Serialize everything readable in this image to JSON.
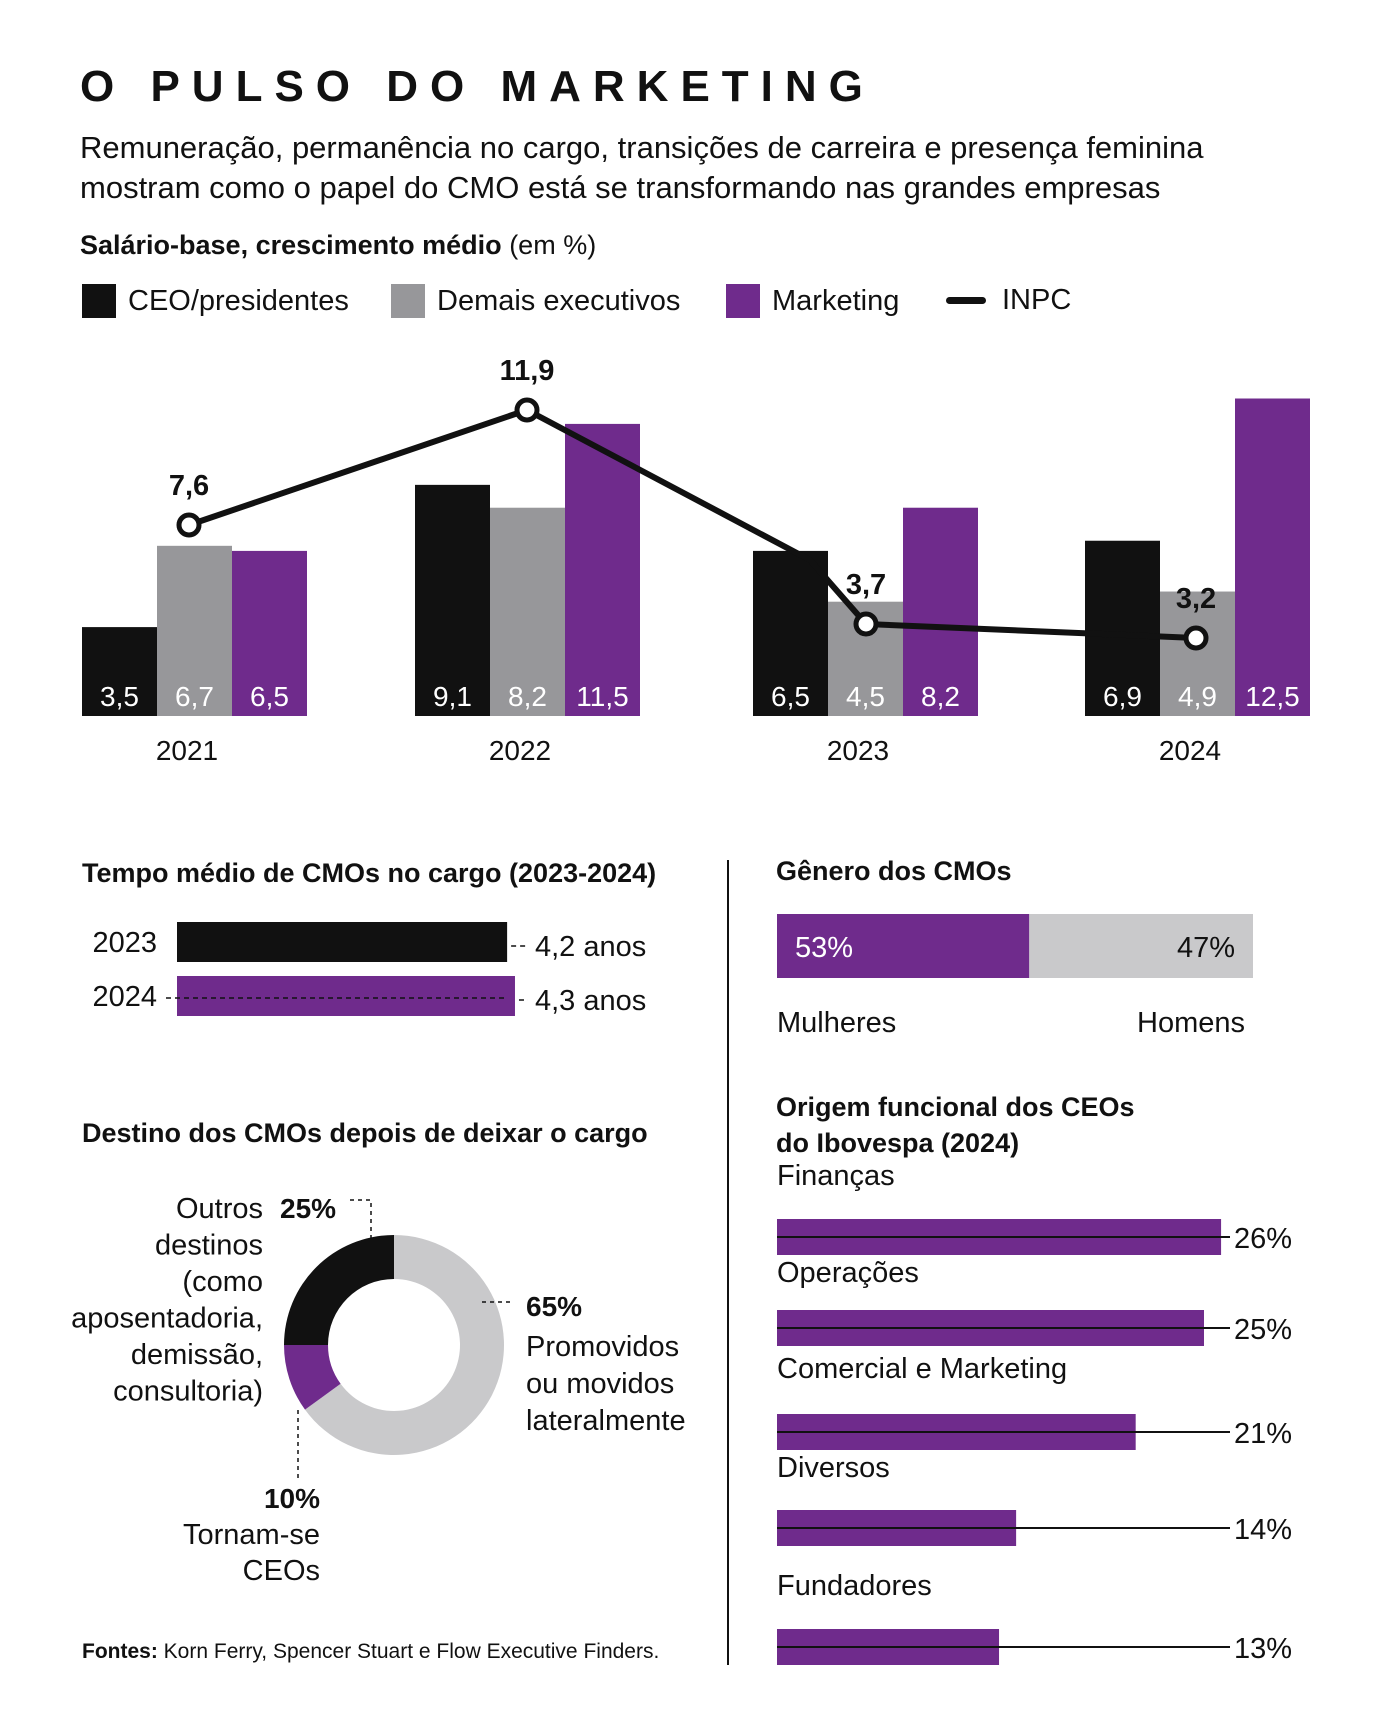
{
  "header": {
    "title": "O PULSO DO MARKETING",
    "subtitle": "Remuneração, permanência no cargo, transições de carreira e presença feminina mostram como o papel do CMO está se transformando nas grandes empresas"
  },
  "colors": {
    "ceo": "#111111",
    "demais": "#97979a",
    "marketing": "#6f2b8c",
    "light_gray": "#c9c9cb",
    "inpc": "#111111"
  },
  "salary_section": {
    "title_bold": "Salário-base, crescimento médio",
    "title_light": "(em %)"
  },
  "tenure_section": {
    "title": "Tempo médio de CMOs no cargo (2023-2024)"
  },
  "destino_section": {
    "title": "Destino dos CMOs depois de deixar o cargo"
  },
  "genero_section": {
    "title": "Gênero dos CMOs"
  },
  "origem_section": {
    "title_line1": "Origem funcional dos CEOs",
    "title_line2": "do Ibovespa (2024)"
  },
  "footer": {
    "label": "Fontes:",
    "text": "Korn Ferry, Spencer Stuart e Flow Executive Finders."
  },
  "chart_data": [
    {
      "type": "bar",
      "categories": [
        "2021",
        "2022",
        "2023",
        "2024"
      ],
      "series": [
        {
          "name": "CEO/presidentes",
          "values": [
            3.5,
            9.1,
            6.5,
            6.9
          ],
          "labels": [
            "3,5",
            "9,1",
            "6,5",
            "6,9"
          ],
          "color": "#111111"
        },
        {
          "name": "Demais executivos",
          "values": [
            6.7,
            8.2,
            4.5,
            4.9
          ],
          "labels": [
            "6,7",
            "8,2",
            "4,5",
            "4,9"
          ],
          "color": "#97979a"
        },
        {
          "name": "Marketing",
          "values": [
            6.5,
            11.5,
            8.2,
            12.5
          ],
          "labels": [
            "6,5",
            "11,5",
            "8,2",
            "12,5"
          ],
          "color": "#6f2b8c"
        }
      ],
      "line": {
        "name": "INPC",
        "values": [
          7.6,
          11.9,
          3.7,
          3.2
        ],
        "labels": [
          "7,6",
          "11,9",
          "3,7",
          "3,2"
        ]
      },
      "ylim": [
        0,
        13
      ],
      "grid": false,
      "legend": "top-left"
    },
    {
      "type": "bar",
      "orientation": "horizontal",
      "categories": [
        "2023",
        "2024"
      ],
      "values": [
        4.2,
        4.3
      ],
      "labels": [
        "4,2 anos",
        "4,3 anos"
      ],
      "colors": [
        "#111111",
        "#6f2b8c"
      ]
    },
    {
      "type": "pie",
      "donut": true,
      "slices": [
        {
          "value": 65,
          "pct_label": "65%",
          "label": "Promovidos ou movidos lateralmente",
          "lines": [
            "Promovidos",
            "ou movidos",
            "lateralmente"
          ],
          "color": "#c9c9cb"
        },
        {
          "value": 10,
          "pct_label": "10%",
          "label": "Tornam-se CEOs",
          "lines": [
            "Tornam-se",
            "CEOs"
          ],
          "color": "#6f2b8c"
        },
        {
          "value": 25,
          "pct_label": "25%",
          "label": "Outros destinos (como aposentadoria, demissão, consultoria)",
          "lines": [
            "Outros",
            "destinos",
            "(como",
            "aposentadoria,",
            "demissão,",
            "consultoria)"
          ],
          "color": "#111111"
        }
      ]
    },
    {
      "type": "bar",
      "stacked": true,
      "orientation": "horizontal",
      "segments": [
        {
          "name": "Mulheres",
          "value": 53,
          "label": "53%",
          "color": "#6f2b8c"
        },
        {
          "name": "Homens",
          "value": 47,
          "label": "47%",
          "color": "#c9c9cb"
        }
      ]
    },
    {
      "type": "bar",
      "orientation": "horizontal",
      "categories": [
        "Finanças",
        "Operações",
        "Comercial e Marketing",
        "Diversos",
        "Fundadores"
      ],
      "values": [
        26,
        25,
        21,
        14,
        13
      ],
      "labels": [
        "26%",
        "25%",
        "21%",
        "14%",
        "13%"
      ],
      "color": "#6f2b8c"
    }
  ]
}
